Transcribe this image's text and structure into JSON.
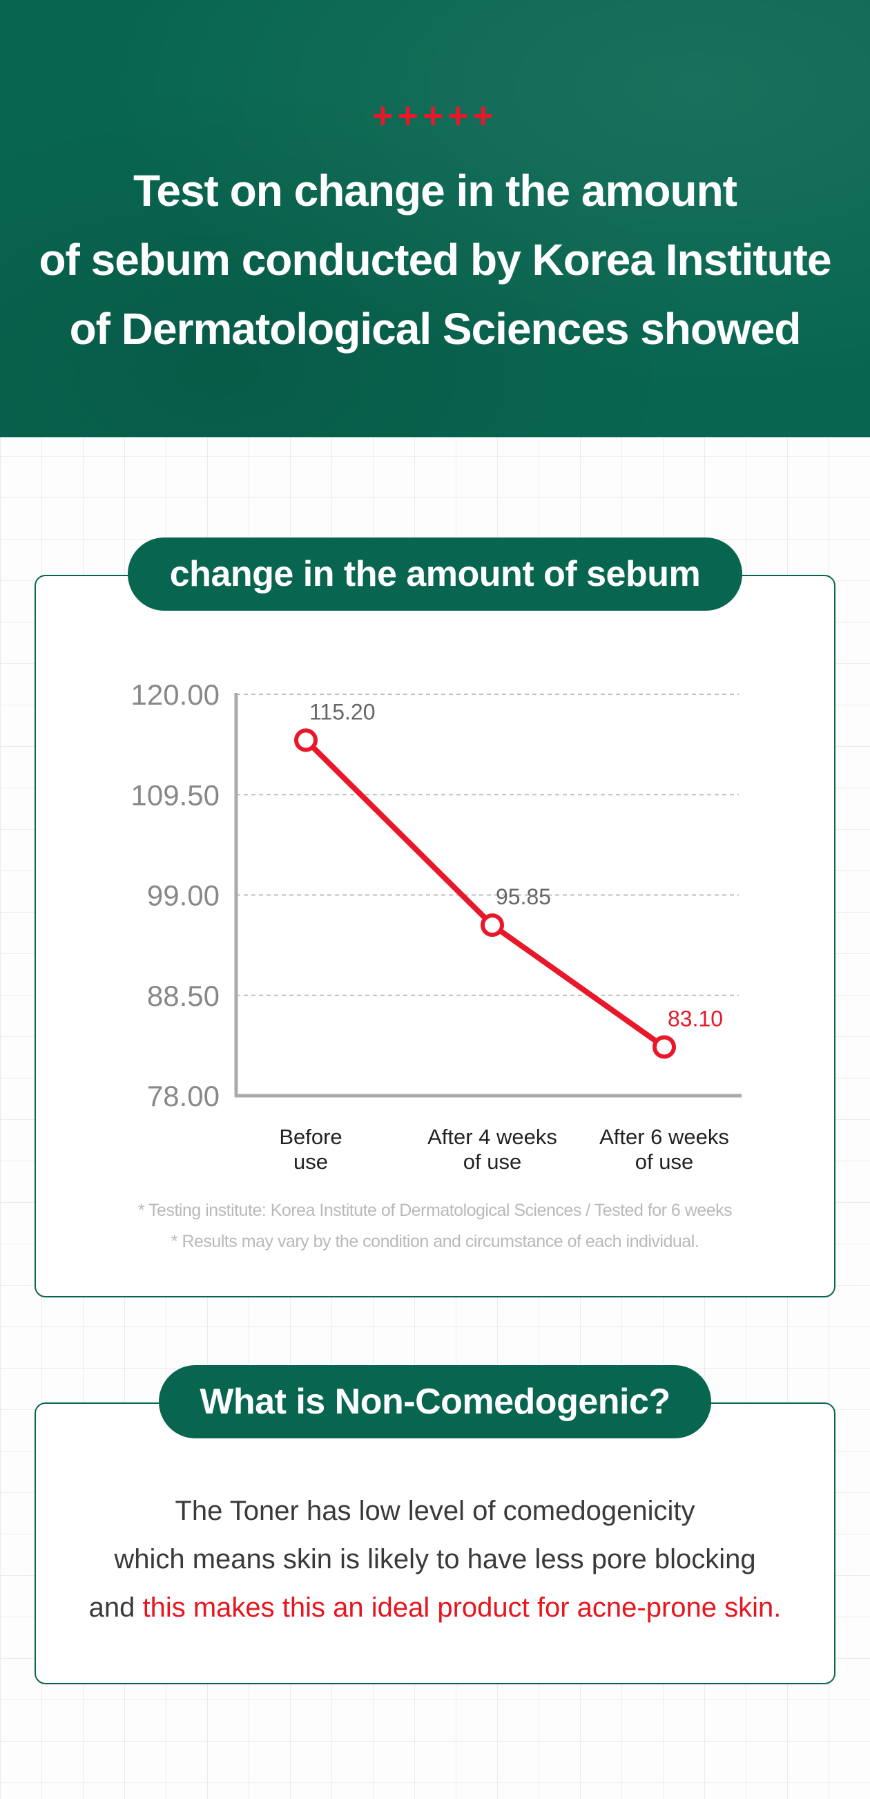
{
  "hero": {
    "decoration": "+++++",
    "title_lines": [
      "Test on change in the amount",
      "of sebum conducted by Korea Institute",
      "of Dermatological Sciences showed"
    ]
  },
  "chart_section": {
    "heading": "change in the amount of sebum",
    "footnotes": [
      "* Testing institute: Korea Institute of Dermatological Sciences / Tested for 6 weeks",
      "* Results may vary by the condition and circumstance of each individual."
    ]
  },
  "chart_data": {
    "type": "line",
    "categories": [
      [
        "Before",
        "use"
      ],
      [
        "After 4 weeks",
        "of use"
      ],
      [
        "After 6 weeks",
        "of use"
      ]
    ],
    "series": [
      {
        "values": [
          115.2,
          95.85,
          83.1
        ],
        "labels": [
          "115.20",
          "95.85",
          "83.10"
        ]
      }
    ],
    "y_ticks": [
      "120.00",
      "109.50",
      "99.00",
      "88.50",
      "78.00"
    ],
    "ylim": [
      78.0,
      120.0
    ],
    "grid": "dashed horizontal",
    "colors": {
      "line": "#e8182a",
      "axis": "#aaaaaa",
      "grid": "#bdbdbd",
      "tick": "#888888",
      "label": "#666666",
      "last_label": "#e8182a"
    }
  },
  "info_section": {
    "heading": "What is Non-Comedogenic?",
    "line1": "The Toner has low level of comedogenicity",
    "line2": "which means skin is likely to have less pore blocking",
    "line3_prefix": "and ",
    "line3_highlight": "this makes this an ideal product for acne-prone skin."
  },
  "colors": {
    "brand_green": "#086650",
    "accent_red": "#e8182a"
  }
}
